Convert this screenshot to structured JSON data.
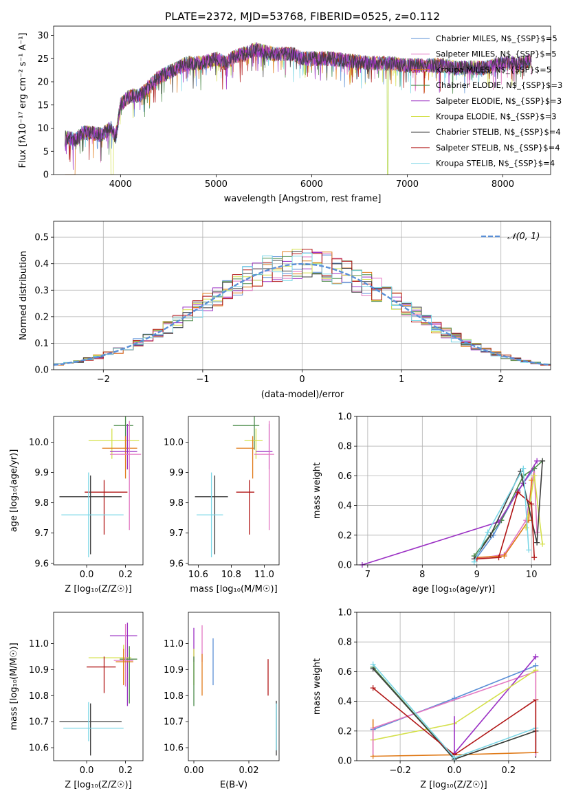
{
  "chart_data": [
    {
      "id": "spectrum",
      "type": "line",
      "title": "PLATE=2372, MJD=53768, FIBERID=0525, z=0.112",
      "xlabel": "wavelength [Angstrom, rest frame]",
      "ylabel": "Flux [fλ10⁻¹⁷ erg cm⁻² s⁻¹ A⁻¹]",
      "xlim": [
        3300,
        8500
      ],
      "ylim": [
        0,
        32
      ],
      "xticks": [
        "4000",
        "5000",
        "6000",
        "7000",
        "8000"
      ],
      "yticks": [
        "0",
        "5",
        "10",
        "15",
        "20",
        "25",
        "30"
      ],
      "grid": false,
      "legend_position": "top-right",
      "spectrum_anchors": {
        "x": [
          3420,
          3530,
          3600,
          3700,
          3800,
          3900,
          3950,
          4000,
          4100,
          4200,
          4300,
          4400,
          4500,
          4600,
          4700,
          4850,
          5000,
          5100,
          5200,
          5300,
          5400,
          5600,
          5800,
          5900,
          6000,
          6200,
          6400,
          6600,
          6800,
          7000,
          7200,
          7400,
          7500,
          7600,
          7800,
          8000,
          8200,
          8300
        ],
        "y": [
          8,
          7.5,
          9,
          9,
          8.5,
          10,
          8,
          15,
          17,
          17,
          19,
          21,
          22,
          23,
          24,
          24,
          25,
          24,
          25.5,
          26,
          27,
          26,
          26,
          25,
          25,
          25,
          24.5,
          24,
          24,
          23.5,
          23.5,
          23.5,
          23,
          23,
          23,
          24,
          24,
          24.5
        ]
      },
      "series": [
        {
          "name": "Chabrier MILES, N$_{SSP}$=5",
          "color": "#5a8fd6"
        },
        {
          "name": "Salpeter MILES, N$_{SSP}$=5",
          "color": "#e377c2"
        },
        {
          "name": "Kroupa MILES, N$_{SSP}$=5",
          "color": "#e07b1a"
        },
        {
          "name": "Chabrier ELODIE, N$_{SSP}$=3",
          "color": "#4c8c4a"
        },
        {
          "name": "Salpeter ELODIE, N$_{SSP}$=3",
          "color": "#9b30c4"
        },
        {
          "name": "Kroupa ELODIE, N$_{SSP}$=3",
          "color": "#d4e04a"
        },
        {
          "name": "Chabrier STELIB, N$_{SSP}$=4",
          "color": "#3b3b3b"
        },
        {
          "name": "Salpeter STELIB, N$_{SSP}$=4",
          "color": "#b01515"
        },
        {
          "name": "Kroupa STELIB, N$_{SSP}$=4",
          "color": "#7ad6e6"
        }
      ]
    },
    {
      "id": "residuals",
      "type": "histogram",
      "xlabel": "(data-model)/error",
      "ylabel": "Normed distribution",
      "xlim": [
        -2.5,
        2.5
      ],
      "ylim": [
        0,
        0.56
      ],
      "xticks": [
        "−2",
        "−1",
        "0",
        "1",
        "2"
      ],
      "yticks": [
        "0.0",
        "0.1",
        "0.2",
        "0.3",
        "0.4",
        "0.5"
      ],
      "grid": true,
      "legend_position": "top-right",
      "reference_curve": {
        "label": "𝒩(0, 1)",
        "color": "#5a8fd6",
        "mean": 0,
        "sigma": 1
      }
    },
    {
      "id": "age-vs-Z",
      "type": "errorbar",
      "xlabel": "Z [log₁₀(Z/Z☉)]",
      "ylabel": "age  [log₁₀(age/yr)]",
      "xlim": [
        -0.17,
        0.29
      ],
      "ylim": [
        9.595,
        10.085
      ],
      "xticks": [
        "0.0",
        "0.2"
      ],
      "yticks": [
        "9.6",
        "9.7",
        "9.8",
        "9.9",
        "10.0"
      ],
      "grid": false,
      "points": [
        {
          "x": 0.2,
          "y": 10.055,
          "xerr": [
            0.06,
            0.04
          ],
          "yerr": [
            0.08,
            0.03
          ],
          "color": "#4c8c4a"
        },
        {
          "x": 0.13,
          "y": 10.005,
          "xerr": [
            0.12,
            0.14
          ],
          "yerr": [
            0.06,
            0.04
          ],
          "color": "#d4e04a"
        },
        {
          "x": 0.2,
          "y": 9.98,
          "xerr": [
            0.12,
            0.06
          ],
          "yerr": [
            0.1,
            0.04
          ],
          "color": "#e07b1a"
        },
        {
          "x": 0.21,
          "y": 9.97,
          "xerr": [
            0.09,
            0.05
          ],
          "yerr": [
            0.06,
            0.09
          ],
          "color": "#9b30c4"
        },
        {
          "x": 0.22,
          "y": 9.96,
          "xerr": [
            0.1,
            0.06
          ],
          "yerr": [
            0.25,
            0.11
          ],
          "color": "#e377c2"
        },
        {
          "x": 0.09,
          "y": 9.835,
          "xerr": [
            0.1,
            0.12
          ],
          "yerr": [
            0.14,
            0.04
          ],
          "color": "#b01515"
        },
        {
          "x": 0.02,
          "y": 9.82,
          "xerr": [
            0.16,
            0.16
          ],
          "yerr": [
            0.19,
            0.07
          ],
          "color": "#3b3b3b"
        },
        {
          "x": 0.01,
          "y": 9.76,
          "xerr": [
            0.14,
            0.18
          ],
          "yerr": [
            0.14,
            0.14
          ],
          "color": "#7ad6e6"
        }
      ]
    },
    {
      "id": "age-vs-mass",
      "type": "errorbar",
      "xlabel": "mass [log₁₀(M/M☉)]",
      "ylabel": "",
      "xlim": [
        10.54,
        11.09
      ],
      "ylim": [
        9.595,
        10.085
      ],
      "xticks": [
        "10.6",
        "10.8",
        "11.0"
      ],
      "yticks": [
        "9.6",
        "9.7",
        "9.8",
        "9.9",
        "10.0"
      ],
      "grid": false,
      "points": [
        {
          "x": 10.94,
          "y": 10.055,
          "xerr": [
            0.13,
            0.03
          ],
          "yerr": [
            0.08,
            0.03
          ],
          "color": "#4c8c4a"
        },
        {
          "x": 10.95,
          "y": 10.005,
          "xerr": [
            0.07,
            0.04
          ],
          "yerr": [
            0.06,
            0.04
          ],
          "color": "#d4e04a"
        },
        {
          "x": 10.93,
          "y": 9.98,
          "xerr": [
            0.1,
            0.01
          ],
          "yerr": [
            0.1,
            0.04
          ],
          "color": "#e07b1a"
        },
        {
          "x": 11.03,
          "y": 9.97,
          "xerr": [
            0.08,
            0.02
          ],
          "yerr": [
            0.06,
            0.09
          ],
          "color": "#9b30c4"
        },
        {
          "x": 11.03,
          "y": 9.96,
          "xerr": [
            0.09,
            0.03
          ],
          "yerr": [
            0.25,
            0.11
          ],
          "color": "#e377c2"
        },
        {
          "x": 10.91,
          "y": 9.835,
          "xerr": [
            0.08,
            0.03
          ],
          "yerr": [
            0.14,
            0.04
          ],
          "color": "#b01515"
        },
        {
          "x": 10.7,
          "y": 9.82,
          "xerr": [
            0.12,
            0.08
          ],
          "yerr": [
            0.19,
            0.07
          ],
          "color": "#3b3b3b"
        },
        {
          "x": 10.68,
          "y": 9.76,
          "xerr": [
            0.09,
            0.07
          ],
          "yerr": [
            0.14,
            0.14
          ],
          "color": "#7ad6e6"
        }
      ]
    },
    {
      "id": "weight-vs-age",
      "type": "line",
      "xlabel": "age  [log₁₀(age/yr)]",
      "ylabel": "mass weight",
      "xlim": [
        6.8,
        10.35
      ],
      "ylim": [
        0,
        1
      ],
      "xticks": [
        "7",
        "8",
        "9",
        "10"
      ],
      "yticks": [
        "0.0",
        "0.2",
        "0.4",
        "0.6",
        "0.8",
        "1.0"
      ],
      "grid": true,
      "series": [
        {
          "color": "#5a8fd6",
          "x": [
            9.0,
            9.3,
            9.75,
            10.05
          ],
          "y": [
            0.05,
            0.2,
            0.5,
            0.65
          ]
        },
        {
          "color": "#e377c2",
          "x": [
            8.95,
            9.5,
            9.9,
            10.05,
            10.1
          ],
          "y": [
            0.04,
            0.07,
            0.3,
            0.65,
            0.22
          ]
        },
        {
          "color": "#e07b1a",
          "x": [
            9.0,
            9.5,
            9.95,
            10.0
          ],
          "y": [
            0.05,
            0.06,
            0.3,
            0.57
          ]
        },
        {
          "color": "#4c8c4a",
          "x": [
            8.95,
            9.45,
            9.85,
            10.05,
            10.2
          ],
          "y": [
            0.06,
            0.3,
            0.6,
            0.65,
            0.7
          ]
        },
        {
          "color": "#9b30c4",
          "x": [
            6.9,
            9.4,
            9.85,
            10.1
          ],
          "y": [
            0.0,
            0.29,
            0.55,
            0.7
          ]
        },
        {
          "color": "#d4e04a",
          "x": [
            9.9,
            10.05,
            10.2
          ],
          "y": [
            0.25,
            0.6,
            0.14
          ]
        },
        {
          "color": "#3b3b3b",
          "x": [
            8.95,
            9.25,
            9.8,
            10.1,
            10.2
          ],
          "y": [
            0.04,
            0.2,
            0.63,
            0.15,
            0.7
          ]
        },
        {
          "color": "#b01515",
          "x": [
            9.0,
            9.4,
            9.75,
            10.0,
            10.05
          ],
          "y": [
            0.04,
            0.05,
            0.49,
            0.41,
            0.05
          ]
        },
        {
          "color": "#7ad6e6",
          "x": [
            8.95,
            9.2,
            9.85,
            9.95
          ],
          "y": [
            0.02,
            0.22,
            0.65,
            0.1
          ]
        }
      ]
    },
    {
      "id": "mass-vs-Z",
      "type": "errorbar",
      "xlabel": "Z [log₁₀(Z/Z☉)]",
      "ylabel": "mass [log₁₀(M/M☉)]",
      "xlim": [
        -0.17,
        0.29
      ],
      "ylim": [
        10.55,
        11.12
      ],
      "xticks": [
        "0.0",
        "0.2"
      ],
      "yticks": [
        "10.6",
        "10.7",
        "10.8",
        "10.9",
        "11.0"
      ],
      "grid": false,
      "points": [
        {
          "x": 0.21,
          "y": 11.03,
          "xerr": [
            0.09,
            0.05
          ],
          "yerr": [
            0.27,
            0.05
          ],
          "color": "#9b30c4"
        },
        {
          "x": 0.19,
          "y": 10.945,
          "xerr": [
            0.18,
            0.04
          ],
          "yerr": [
            0.1,
            0.05
          ],
          "color": "#d4e04a"
        },
        {
          "x": 0.22,
          "y": 10.94,
          "xerr": [
            0.05,
            0.04
          ],
          "yerr": [
            0.17,
            0.05
          ],
          "color": "#4c8c4a"
        },
        {
          "x": 0.2,
          "y": 10.935,
          "xerr": [
            0.06,
            0.04
          ],
          "yerr": [
            0.1,
            0.14
          ],
          "color": "#e377c2"
        },
        {
          "x": 0.19,
          "y": 10.93,
          "xerr": [
            0.04,
            0.05
          ],
          "yerr": [
            0.09,
            0.05
          ],
          "color": "#e07b1a"
        },
        {
          "x": 0.09,
          "y": 10.91,
          "xerr": [
            0.09,
            0.06
          ],
          "yerr": [
            0.1,
            0.04
          ],
          "color": "#b01515"
        },
        {
          "x": 0.02,
          "y": 10.7,
          "xerr": [
            0.16,
            0.16
          ],
          "yerr": [
            0.13,
            0.07
          ],
          "color": "#3b3b3b"
        },
        {
          "x": 0.01,
          "y": 10.675,
          "xerr": [
            0.13,
            0.18
          ],
          "yerr": [
            0.05,
            0.1
          ],
          "color": "#7ad6e6"
        }
      ]
    },
    {
      "id": "mass-vs-ebv",
      "type": "errorbar",
      "xlabel": "E(B-V)",
      "ylabel": "",
      "xlim": [
        -0.002,
        0.031
      ],
      "ylim": [
        10.55,
        11.12
      ],
      "xticks": [
        "0.00",
        "0.02"
      ],
      "yticks": [
        "10.6",
        "10.7",
        "10.8",
        "10.9",
        "11.0"
      ],
      "grid": false,
      "points": [
        {
          "x": 0.0,
          "y": 11.03,
          "xerr": [
            0,
            0
          ],
          "yerr": [
            0.1,
            0.03
          ],
          "color": "#9b30c4"
        },
        {
          "x": 0.0,
          "y": 10.93,
          "xerr": [
            0,
            0
          ],
          "yerr": [
            0.09,
            0.05
          ],
          "color": "#d4e04a"
        },
        {
          "x": 0.0,
          "y": 10.9,
          "xerr": [
            0,
            0
          ],
          "yerr": [
            0.14,
            0.05
          ],
          "color": "#4c8c4a"
        },
        {
          "x": 0.003,
          "y": 10.98,
          "xerr": [
            0,
            0
          ],
          "yerr": [
            0.05,
            0.09
          ],
          "color": "#e377c2"
        },
        {
          "x": 0.003,
          "y": 10.9,
          "xerr": [
            0,
            0
          ],
          "yerr": [
            0.1,
            0.06
          ],
          "color": "#e07b1a"
        },
        {
          "x": 0.007,
          "y": 10.93,
          "xerr": [
            0,
            0
          ],
          "yerr": [
            0.09,
            0.09
          ],
          "color": "#5a8fd6"
        },
        {
          "x": 0.027,
          "y": 10.87,
          "xerr": [
            0,
            0
          ],
          "yerr": [
            0.07,
            0.07
          ],
          "color": "#b01515"
        },
        {
          "x": 0.03,
          "y": 10.68,
          "xerr": [
            0,
            0
          ],
          "yerr": [
            0.11,
            0.1
          ],
          "color": "#3b3b3b"
        },
        {
          "x": 0.03,
          "y": 10.67,
          "xerr": [
            0,
            0
          ],
          "yerr": [
            0.08,
            0.1
          ],
          "color": "#7ad6e6"
        }
      ]
    },
    {
      "id": "weight-vs-Z",
      "type": "line",
      "xlabel": "Z [log₁₀(Z/Z☉)]",
      "ylabel": "mass weight",
      "xlim": [
        -0.36,
        0.355
      ],
      "ylim": [
        0,
        1
      ],
      "xticks": [
        "−0.2",
        "0.0",
        "0.2"
      ],
      "yticks": [
        "0.0",
        "0.2",
        "0.4",
        "0.6",
        "0.8",
        "1.0"
      ],
      "grid": true,
      "series": [
        {
          "color": "#5a8fd6",
          "x": [
            -0.3,
            0.0,
            0.3
          ],
          "y": [
            0.21,
            0.42,
            0.64
          ]
        },
        {
          "color": "#e377c2",
          "x": [
            -0.3,
            0.3
          ],
          "y": [
            0.22,
            0.6
          ]
        },
        {
          "color": "#e07b1a",
          "x": [
            -0.3,
            0.0,
            0.3
          ],
          "y": [
            0.03,
            0.04,
            0.055
          ]
        },
        {
          "color": "#4c8c4a",
          "x": [
            -0.3,
            0.0,
            0.3
          ],
          "y": [
            0.63,
            0.01,
            0.2
          ]
        },
        {
          "color": "#9b30c4",
          "x": [
            0.0,
            0.3
          ],
          "y": [
            0.05,
            0.7
          ]
        },
        {
          "color": "#d4e04a",
          "x": [
            -0.3,
            0.0,
            0.3
          ],
          "y": [
            0.14,
            0.25,
            0.61
          ]
        },
        {
          "color": "#3b3b3b",
          "x": [
            -0.3,
            0.0,
            0.3
          ],
          "y": [
            0.62,
            0.01,
            0.2
          ]
        },
        {
          "color": "#b01515",
          "x": [
            -0.3,
            0.0,
            0.3
          ],
          "y": [
            0.49,
            0.04,
            0.41
          ]
        },
        {
          "color": "#7ad6e6",
          "x": [
            -0.3,
            0.0,
            0.3
          ],
          "y": [
            0.65,
            0.02,
            0.22
          ]
        }
      ],
      "vertical_markers": [
        {
          "color": "#e07b1a",
          "x": -0.3,
          "y": [
            0.03,
            0.28
          ]
        },
        {
          "color": "#e377c2",
          "x": -0.3,
          "y": [
            0.04,
            0.22
          ]
        },
        {
          "color": "#9b30c4",
          "x": 0.0,
          "y": [
            0.05,
            0.3
          ]
        },
        {
          "color": "#e07b1a",
          "x": 0.3,
          "y": [
            0.04,
            0.6
          ]
        },
        {
          "color": "#7ad6e6",
          "x": 0.3,
          "y": [
            0.1,
            0.22
          ]
        },
        {
          "color": "#3b3b3b",
          "x": 0.3,
          "y": [
            0.02,
            0.2
          ]
        },
        {
          "color": "#e377c2",
          "x": 0.3,
          "y": [
            0.03,
            0.6
          ]
        },
        {
          "color": "#b01515",
          "x": 0.3,
          "y": [
            0.05,
            0.41
          ]
        }
      ]
    }
  ]
}
